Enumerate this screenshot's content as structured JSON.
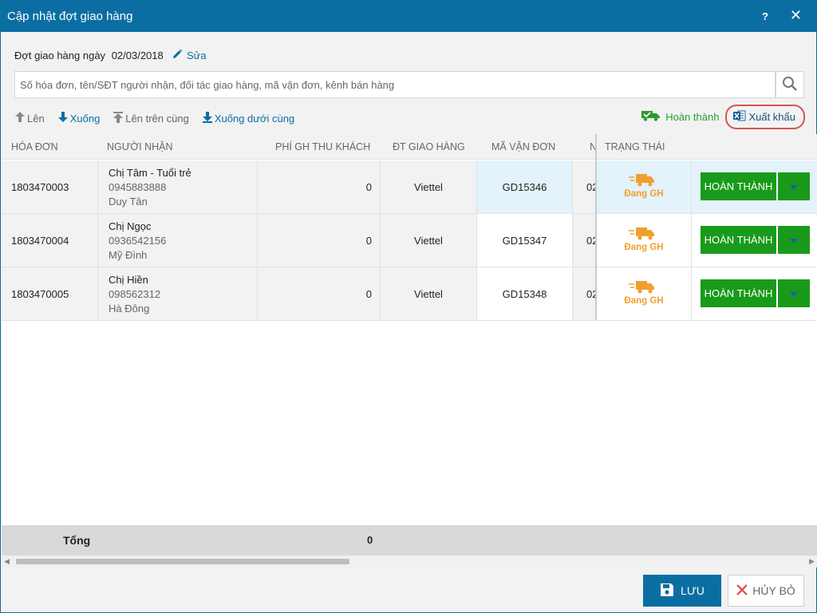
{
  "window": {
    "title": "Cập nhật đợt giao hàng",
    "help": "?",
    "close": "✕"
  },
  "batch": {
    "label": "Đợt giao hàng ngày",
    "date": "02/03/2018",
    "edit_label": "Sửa"
  },
  "search": {
    "placeholder": "Số hóa đơn, tên/SĐT người nhận, đối tác giao hàng, mã vận đơn, kênh bán hàng",
    "value": ""
  },
  "toolbar": {
    "up": "Lên",
    "down": "Xuống",
    "top": "Lên trên cùng",
    "bottom": "Xuống dưới cùng",
    "complete": "Hoàn thành",
    "export": "Xuất khẩu"
  },
  "columns": {
    "invoice": "HÓA ĐƠN",
    "recipient": "NGƯỜI NHẬN",
    "fee": "PHÍ GH THU KHÁCH",
    "partner": "ĐT GIAO HÀNG",
    "tracking": "MÃ VẬN ĐƠN",
    "n": "N",
    "status": "TRẠNG THÁI"
  },
  "rows": [
    {
      "invoice": "1803470003",
      "name": "Chị Tâm - Tuổi trẻ",
      "phone": "0945883888",
      "address": "Duy Tân",
      "fee": "0",
      "partner": "Viettel",
      "tracking": "GD15346",
      "n": "02",
      "status": "Đang GH",
      "action": "HOÀN THÀNH"
    },
    {
      "invoice": "1803470004",
      "name": "Chị Ngọc",
      "phone": "0936542156",
      "address": "Mỹ Đình",
      "fee": "0",
      "partner": "Viettel",
      "tracking": "GD15347",
      "n": "02",
      "status": "Đang GH",
      "action": "HOÀN THÀNH"
    },
    {
      "invoice": "1803470005",
      "name": "Chị Hiền",
      "phone": "098562312",
      "address": "Hà Đông",
      "fee": "0",
      "partner": "Viettel",
      "tracking": "GD15348",
      "n": "02",
      "status": "Đang GH",
      "action": "HOÀN THÀNH"
    }
  ],
  "footer": {
    "total_label": "Tổng",
    "total_fee": "0"
  },
  "actions": {
    "save": "LƯU",
    "cancel": "HỦY BỎ"
  },
  "colors": {
    "primary": "#0b6ea3",
    "success": "#1a9a1a",
    "warning": "#f0a030",
    "highlight": "#e3f2fb",
    "export_circle": "#d9534f"
  },
  "icons": {
    "edit": "pencil-icon",
    "search": "search-icon",
    "up": "arrow-up-icon",
    "down": "arrow-down-icon",
    "top": "arrow-top-icon",
    "bottom": "arrow-bottom-icon",
    "complete": "truck-check-icon",
    "export": "excel-icon",
    "status": "truck-icon",
    "dropdown": "caret-down-icon",
    "save": "floppy-disk-icon",
    "cancel": "x-icon"
  }
}
